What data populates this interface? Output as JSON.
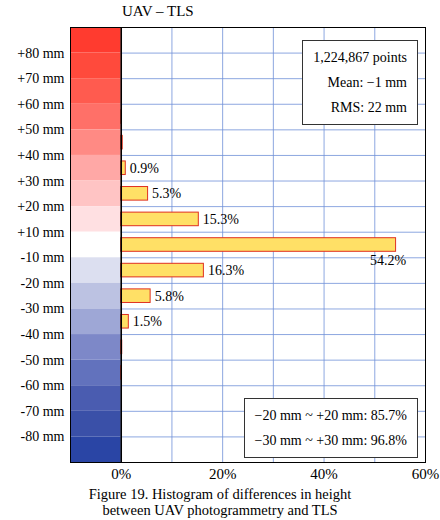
{
  "chart_data": {
    "type": "histogram",
    "orientation": "horizontal",
    "title": "UAV – TLS",
    "caption": [
      "Figure 19. Histogram of differences in height",
      "between UAV photogrammetry and TLS"
    ],
    "bins": [
      null,
      "+80 mm",
      "+70 mm",
      "+60 mm",
      "+50 mm",
      "+40 mm",
      "+30 mm",
      "+20 mm",
      "+10 mm",
      "-10 mm",
      "-20 mm",
      "-30 mm",
      "-40 mm",
      "-50 mm",
      "-60 mm",
      "-70 mm",
      "-80 mm",
      null
    ],
    "values": [
      0,
      0,
      0,
      0.1,
      0.3,
      0.9,
      5.3,
      15.3,
      54.2,
      16.3,
      5.8,
      1.5,
      0.2,
      0.1,
      0,
      0,
      0
    ],
    "value_labels": [
      null,
      null,
      null,
      null,
      null,
      "0.9%",
      "5.3%",
      "15.3%",
      "54.2%",
      "16.3%",
      "5.8%",
      "1.5%",
      null,
      null,
      null,
      null,
      null
    ],
    "data_labels": true,
    "color": "#ffe066",
    "colors": [
      "#ff3b2f",
      "#ff4a3c",
      "#ff5b4f",
      "#ff7068",
      "#ff8a84",
      "#ffa8a6",
      "#ffc4c4",
      "#ffe0e2",
      "#ffffff",
      "#dcdff0",
      "#bcc2e2",
      "#9ea7d6",
      "#7d88c8",
      "#6272bd",
      "#4a5cb0",
      "#3a50a8",
      "#2a45a5"
    ],
    "xlim": [
      -10,
      60
    ],
    "xticks": [
      {
        "value": 0,
        "label": "0%"
      },
      {
        "value": 20,
        "label": "20%"
      },
      {
        "value": 40,
        "label": "40%"
      },
      {
        "value": 60,
        "label": "60%"
      }
    ],
    "grid": true,
    "annotations": [
      [
        "1,224,867 points",
        "Mean: −1 mm",
        "RMS: 22 mm"
      ],
      [
        "−20 mm ~ +20 mm: 85.7%",
        "−30 mm ~ +30 mm: 96.8%"
      ]
    ]
  }
}
